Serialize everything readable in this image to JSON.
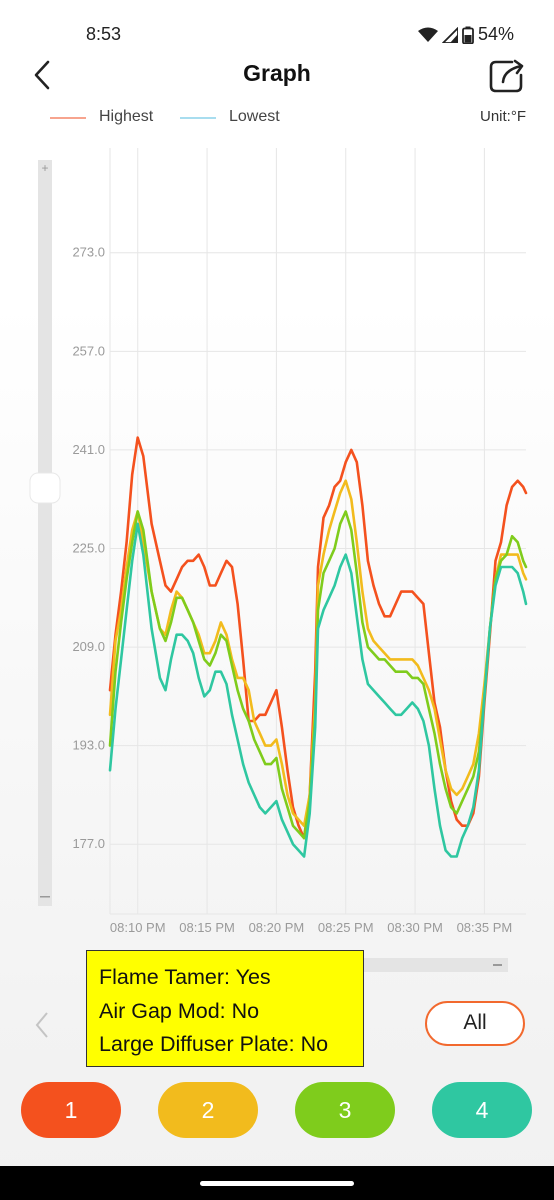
{
  "status": {
    "time": "8:53",
    "battery": "54%"
  },
  "header": {
    "title": "Graph"
  },
  "legend": {
    "highest": "Highest",
    "lowest": "Lowest",
    "unit": "Unit:°F"
  },
  "colors": {
    "probe1": "#f4511e",
    "probe2": "#f2bb1d",
    "probe3": "#7fcc1c",
    "probe4": "#2fc7a1",
    "highest_legend": "#f7a48e",
    "lowest_legend": "#a8ddef"
  },
  "zoom": {
    "plus": "+",
    "minus": "−"
  },
  "note": {
    "line1": "Flame Tamer: Yes",
    "line2": "Air Gap Mod: No",
    "line3": "Large Diffuser Plate: No"
  },
  "buttons": {
    "all": "All",
    "probe1": "1",
    "probe2": "2",
    "probe3": "3",
    "probe4": "4"
  },
  "chart_data": {
    "type": "line",
    "ylim": [
      166,
      290
    ],
    "y_ticks": [
      "273.0",
      "257.0",
      "241.0",
      "225.0",
      "209.0",
      "193.0",
      "177.0"
    ],
    "x_tick_labels": [
      "08:10 PM",
      "08:15 PM",
      "08:20 PM",
      "08:25 PM",
      "08:30 PM",
      "08:35 PM"
    ],
    "x_range": [
      8.0,
      38.0
    ],
    "x_ticks": [
      10,
      15,
      20,
      25,
      30,
      35
    ],
    "series": [
      {
        "name": "1",
        "color": "#f4511e",
        "values": [
          [
            8.0,
            202
          ],
          [
            8.4,
            211
          ],
          [
            8.8,
            218
          ],
          [
            9.2,
            226
          ],
          [
            9.6,
            237
          ],
          [
            10.0,
            243
          ],
          [
            10.4,
            240
          ],
          [
            11.0,
            229
          ],
          [
            11.6,
            223
          ],
          [
            12.0,
            219
          ],
          [
            12.4,
            218
          ],
          [
            12.8,
            220
          ],
          [
            13.2,
            222
          ],
          [
            13.6,
            223
          ],
          [
            14.0,
            223
          ],
          [
            14.4,
            224
          ],
          [
            14.8,
            222
          ],
          [
            15.2,
            219
          ],
          [
            15.6,
            219
          ],
          [
            16.0,
            221
          ],
          [
            16.4,
            223
          ],
          [
            16.8,
            222
          ],
          [
            17.2,
            216
          ],
          [
            17.6,
            207
          ],
          [
            18.0,
            197
          ],
          [
            18.4,
            197
          ],
          [
            18.8,
            198
          ],
          [
            19.2,
            198
          ],
          [
            19.6,
            200
          ],
          [
            20.0,
            202
          ],
          [
            20.4,
            196
          ],
          [
            20.8,
            189
          ],
          [
            21.2,
            183
          ],
          [
            21.6,
            180
          ],
          [
            22.0,
            178
          ],
          [
            22.4,
            185
          ],
          [
            22.8,
            205
          ],
          [
            23.0,
            222
          ],
          [
            23.4,
            230
          ],
          [
            23.8,
            232
          ],
          [
            24.2,
            235
          ],
          [
            24.6,
            236
          ],
          [
            25.0,
            239
          ],
          [
            25.4,
            241
          ],
          [
            25.8,
            239
          ],
          [
            26.2,
            232
          ],
          [
            26.6,
            223
          ],
          [
            27.0,
            219
          ],
          [
            27.4,
            216
          ],
          [
            27.8,
            214
          ],
          [
            28.2,
            214
          ],
          [
            28.6,
            216
          ],
          [
            29.0,
            218
          ],
          [
            29.4,
            218
          ],
          [
            29.8,
            218
          ],
          [
            30.2,
            217
          ],
          [
            30.6,
            216
          ],
          [
            31.0,
            208
          ],
          [
            31.4,
            200
          ],
          [
            31.8,
            196
          ],
          [
            32.2,
            189
          ],
          [
            32.6,
            184
          ],
          [
            33.0,
            181
          ],
          [
            33.4,
            180
          ],
          [
            33.8,
            180
          ],
          [
            34.2,
            182
          ],
          [
            34.6,
            188
          ],
          [
            35.0,
            200
          ],
          [
            35.4,
            211
          ],
          [
            35.8,
            223
          ],
          [
            36.2,
            226
          ],
          [
            36.6,
            232
          ],
          [
            37.0,
            235
          ],
          [
            37.4,
            236
          ],
          [
            37.8,
            235
          ],
          [
            38.0,
            234
          ]
        ]
      },
      {
        "name": "2",
        "color": "#f2bb1d",
        "values": [
          [
            8.0,
            198
          ],
          [
            8.4,
            210
          ],
          [
            8.8,
            215
          ],
          [
            9.2,
            222
          ],
          [
            9.6,
            228
          ],
          [
            10.0,
            231
          ],
          [
            10.4,
            226
          ],
          [
            11.0,
            218
          ],
          [
            11.6,
            212
          ],
          [
            12.0,
            211
          ],
          [
            12.4,
            215
          ],
          [
            12.8,
            218
          ],
          [
            13.2,
            217
          ],
          [
            13.6,
            215
          ],
          [
            14.0,
            213
          ],
          [
            14.4,
            211
          ],
          [
            14.8,
            208
          ],
          [
            15.2,
            208
          ],
          [
            15.6,
            210
          ],
          [
            16.0,
            213
          ],
          [
            16.4,
            211
          ],
          [
            16.8,
            207
          ],
          [
            17.2,
            204
          ],
          [
            17.6,
            204
          ],
          [
            18.0,
            202
          ],
          [
            18.4,
            197
          ],
          [
            18.8,
            195
          ],
          [
            19.2,
            193
          ],
          [
            19.6,
            193
          ],
          [
            20.0,
            194
          ],
          [
            20.4,
            190
          ],
          [
            20.8,
            185
          ],
          [
            21.2,
            182
          ],
          [
            21.6,
            181
          ],
          [
            22.0,
            180
          ],
          [
            22.4,
            185
          ],
          [
            22.8,
            200
          ],
          [
            23.0,
            219
          ],
          [
            23.4,
            224
          ],
          [
            23.8,
            228
          ],
          [
            24.2,
            231
          ],
          [
            24.6,
            234
          ],
          [
            25.0,
            236
          ],
          [
            25.4,
            233
          ],
          [
            25.8,
            226
          ],
          [
            26.2,
            218
          ],
          [
            26.6,
            212
          ],
          [
            27.0,
            210
          ],
          [
            27.4,
            209
          ],
          [
            27.8,
            208
          ],
          [
            28.2,
            207
          ],
          [
            28.6,
            207
          ],
          [
            29.0,
            207
          ],
          [
            29.4,
            207
          ],
          [
            29.8,
            207
          ],
          [
            30.2,
            206
          ],
          [
            30.6,
            204
          ],
          [
            31.0,
            202
          ],
          [
            31.4,
            199
          ],
          [
            31.8,
            194
          ],
          [
            32.2,
            189
          ],
          [
            32.6,
            186
          ],
          [
            33.0,
            185
          ],
          [
            33.4,
            186
          ],
          [
            33.8,
            188
          ],
          [
            34.2,
            190
          ],
          [
            34.6,
            195
          ],
          [
            35.0,
            203
          ],
          [
            35.4,
            212
          ],
          [
            35.8,
            220
          ],
          [
            36.2,
            224
          ],
          [
            36.6,
            224
          ],
          [
            37.0,
            224
          ],
          [
            37.4,
            224
          ],
          [
            37.8,
            221
          ],
          [
            38.0,
            220
          ]
        ]
      },
      {
        "name": "3",
        "color": "#7fcc1c",
        "values": [
          [
            8.0,
            193
          ],
          [
            8.4,
            205
          ],
          [
            8.8,
            213
          ],
          [
            9.2,
            220
          ],
          [
            9.6,
            226
          ],
          [
            10.0,
            231
          ],
          [
            10.4,
            228
          ],
          [
            11.0,
            218
          ],
          [
            11.6,
            212
          ],
          [
            12.0,
            210
          ],
          [
            12.4,
            213
          ],
          [
            12.8,
            217
          ],
          [
            13.2,
            217
          ],
          [
            13.6,
            215
          ],
          [
            14.0,
            213
          ],
          [
            14.4,
            210
          ],
          [
            14.8,
            207
          ],
          [
            15.2,
            206
          ],
          [
            15.6,
            208
          ],
          [
            16.0,
            211
          ],
          [
            16.4,
            210
          ],
          [
            16.8,
            206
          ],
          [
            17.2,
            202
          ],
          [
            17.6,
            199
          ],
          [
            18.0,
            197
          ],
          [
            18.4,
            194
          ],
          [
            18.8,
            192
          ],
          [
            19.2,
            190
          ],
          [
            19.6,
            190
          ],
          [
            20.0,
            191
          ],
          [
            20.4,
            186
          ],
          [
            20.8,
            183
          ],
          [
            21.2,
            180
          ],
          [
            21.6,
            179
          ],
          [
            22.0,
            178
          ],
          [
            22.4,
            184
          ],
          [
            22.8,
            198
          ],
          [
            23.0,
            215
          ],
          [
            23.4,
            221
          ],
          [
            23.8,
            223
          ],
          [
            24.2,
            225
          ],
          [
            24.6,
            229
          ],
          [
            25.0,
            231
          ],
          [
            25.4,
            228
          ],
          [
            25.8,
            221
          ],
          [
            26.2,
            213
          ],
          [
            26.6,
            209
          ],
          [
            27.0,
            208
          ],
          [
            27.4,
            207
          ],
          [
            27.8,
            207
          ],
          [
            28.2,
            206
          ],
          [
            28.6,
            205
          ],
          [
            29.0,
            205
          ],
          [
            29.4,
            205
          ],
          [
            29.8,
            204
          ],
          [
            30.2,
            204
          ],
          [
            30.6,
            203
          ],
          [
            31.0,
            199
          ],
          [
            31.4,
            195
          ],
          [
            31.8,
            190
          ],
          [
            32.2,
            186
          ],
          [
            32.6,
            183
          ],
          [
            33.0,
            182
          ],
          [
            33.4,
            184
          ],
          [
            33.8,
            186
          ],
          [
            34.2,
            188
          ],
          [
            34.6,
            192
          ],
          [
            35.0,
            201
          ],
          [
            35.4,
            212
          ],
          [
            35.8,
            220
          ],
          [
            36.2,
            223
          ],
          [
            36.6,
            224
          ],
          [
            37.0,
            227
          ],
          [
            37.4,
            226
          ],
          [
            37.8,
            223
          ],
          [
            38.0,
            222
          ]
        ]
      },
      {
        "name": "4",
        "color": "#2fc7a1",
        "values": [
          [
            8.0,
            189
          ],
          [
            8.4,
            199
          ],
          [
            8.8,
            207
          ],
          [
            9.2,
            215
          ],
          [
            9.6,
            223
          ],
          [
            10.0,
            229
          ],
          [
            10.4,
            224
          ],
          [
            11.0,
            212
          ],
          [
            11.6,
            204
          ],
          [
            12.0,
            202
          ],
          [
            12.4,
            207
          ],
          [
            12.8,
            211
          ],
          [
            13.2,
            211
          ],
          [
            13.6,
            210
          ],
          [
            14.0,
            208
          ],
          [
            14.4,
            204
          ],
          [
            14.8,
            201
          ],
          [
            15.2,
            202
          ],
          [
            15.6,
            205
          ],
          [
            16.0,
            205
          ],
          [
            16.4,
            203
          ],
          [
            16.8,
            198
          ],
          [
            17.2,
            194
          ],
          [
            17.6,
            190
          ],
          [
            18.0,
            187
          ],
          [
            18.4,
            185
          ],
          [
            18.8,
            183
          ],
          [
            19.2,
            182
          ],
          [
            19.6,
            183
          ],
          [
            20.0,
            184
          ],
          [
            20.4,
            181
          ],
          [
            20.8,
            179
          ],
          [
            21.2,
            177
          ],
          [
            21.6,
            176
          ],
          [
            22.0,
            175
          ],
          [
            22.4,
            182
          ],
          [
            22.8,
            196
          ],
          [
            23.0,
            212
          ],
          [
            23.4,
            215
          ],
          [
            23.8,
            217
          ],
          [
            24.2,
            219
          ],
          [
            24.6,
            222
          ],
          [
            25.0,
            224
          ],
          [
            25.4,
            221
          ],
          [
            25.8,
            214
          ],
          [
            26.2,
            207
          ],
          [
            26.6,
            203
          ],
          [
            27.0,
            202
          ],
          [
            27.4,
            201
          ],
          [
            27.8,
            200
          ],
          [
            28.2,
            199
          ],
          [
            28.6,
            198
          ],
          [
            29.0,
            198
          ],
          [
            29.4,
            199
          ],
          [
            29.8,
            200
          ],
          [
            30.2,
            199
          ],
          [
            30.6,
            197
          ],
          [
            31.0,
            193
          ],
          [
            31.4,
            186
          ],
          [
            31.8,
            180
          ],
          [
            32.2,
            176
          ],
          [
            32.6,
            175
          ],
          [
            33.0,
            175
          ],
          [
            33.4,
            178
          ],
          [
            33.8,
            180
          ],
          [
            34.2,
            183
          ],
          [
            34.6,
            189
          ],
          [
            35.0,
            201
          ],
          [
            35.4,
            212
          ],
          [
            35.8,
            219
          ],
          [
            36.2,
            222
          ],
          [
            36.6,
            222
          ],
          [
            37.0,
            222
          ],
          [
            37.4,
            221
          ],
          [
            37.8,
            218
          ],
          [
            38.0,
            216
          ]
        ]
      }
    ]
  }
}
